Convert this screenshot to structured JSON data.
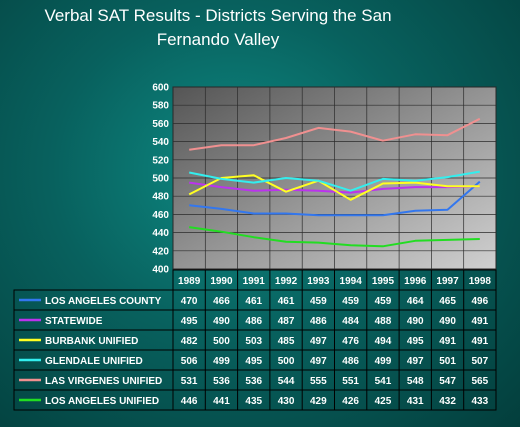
{
  "chart_data": {
    "type": "line",
    "title_line1": "Verbal SAT Results - Districts Serving the San",
    "title_line2": "Fernando Valley",
    "categories": [
      "1989",
      "1990",
      "1991",
      "1992",
      "1993",
      "1994",
      "1995",
      "1996",
      "1997",
      "1998"
    ],
    "ylim": [
      400,
      600
    ],
    "yticks": [
      400,
      420,
      440,
      460,
      480,
      500,
      520,
      540,
      560,
      580,
      600
    ],
    "grid": true,
    "series": [
      {
        "name": "LOS ANGELES COUNTY",
        "color": "#3377ee",
        "values": [
          470,
          466,
          461,
          461,
          459,
          459,
          459,
          464,
          465,
          496
        ]
      },
      {
        "name": "STATEWIDE",
        "color": "#bb33ee",
        "values": [
          495,
          490,
          486,
          487,
          486,
          484,
          488,
          490,
          490,
          491
        ]
      },
      {
        "name": "BURBANK UNIFIED",
        "color": "#ffff22",
        "values": [
          482,
          500,
          503,
          485,
          497,
          476,
          494,
          495,
          491,
          491
        ]
      },
      {
        "name": "GLENDALE UNIFIED",
        "color": "#33eeee",
        "values": [
          506,
          499,
          495,
          500,
          497,
          486,
          499,
          497,
          501,
          507
        ]
      },
      {
        "name": "LAS VIRGENES UNIFIED",
        "color": "#f09090",
        "values": [
          531,
          536,
          536,
          544,
          555,
          551,
          541,
          548,
          547,
          565
        ]
      },
      {
        "name": "LOS ANGELES UNIFIED",
        "color": "#22dd22",
        "values": [
          446,
          441,
          435,
          430,
          429,
          426,
          425,
          431,
          432,
          433
        ]
      }
    ]
  }
}
